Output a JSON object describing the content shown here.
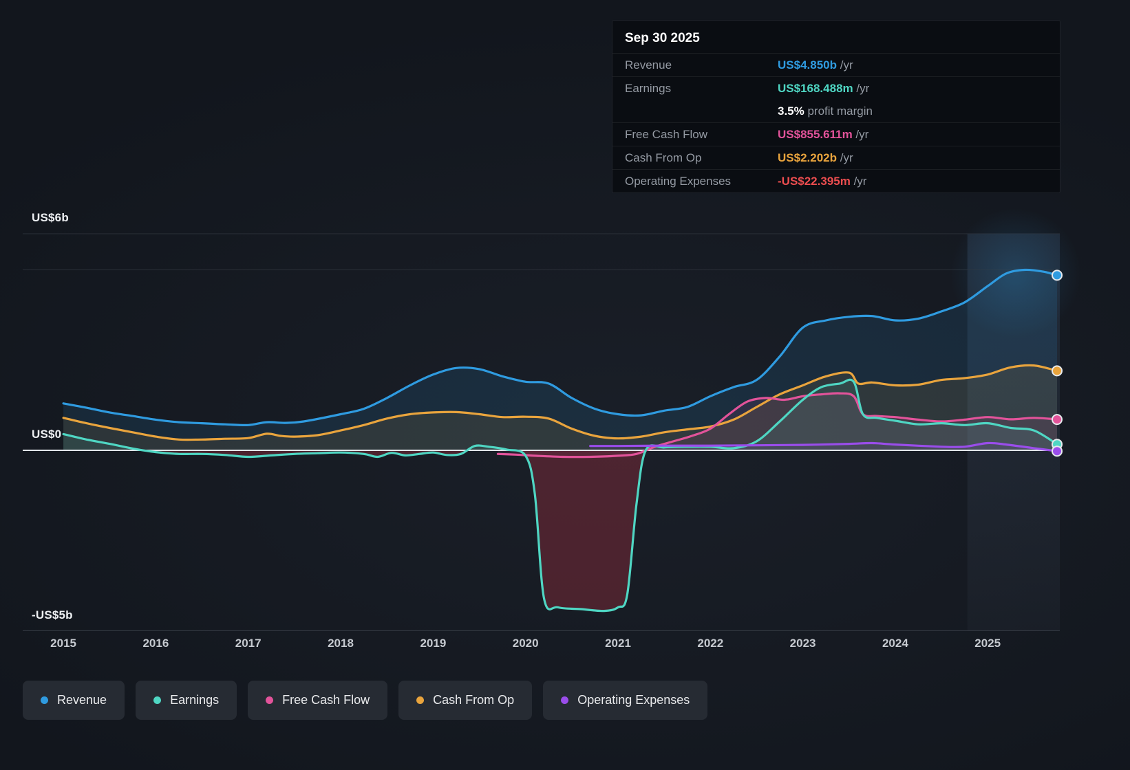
{
  "page": {
    "background": "#12161D",
    "panel_background": "#0A0D12",
    "legend_background": "#262B33",
    "gridline_color": "#2A2F37",
    "zero_line_color": "#E2E6EA",
    "negative_area_color": "#8C2D3C",
    "text_muted": "#949AA3"
  },
  "tooltip": {
    "date": "Sep 30 2025",
    "rows": [
      {
        "id": "revenue",
        "label": "Revenue",
        "value": "US$4.850b",
        "suffix": " /yr",
        "color": "#2F9BE0"
      },
      {
        "id": "earnings",
        "label": "Earnings",
        "value": "US$168.488m",
        "suffix": " /yr",
        "color": "#4FD6C3"
      },
      {
        "id": "profit-margin",
        "label": "",
        "value": "3.5%",
        "suffix": " profit margin",
        "color": "#FFFFFF",
        "no_divider": true
      },
      {
        "id": "free-cash-flow",
        "label": "Free Cash Flow",
        "value": "US$855.611m",
        "suffix": " /yr",
        "color": "#E2539A"
      },
      {
        "id": "cash-from-op",
        "label": "Cash From Op",
        "value": "US$2.202b",
        "suffix": " /yr",
        "color": "#E9A43D"
      },
      {
        "id": "operating-expenses",
        "label": "Operating Expenses",
        "value": "-US$22.395m",
        "suffix": " /yr",
        "color": "#EC4D4F"
      }
    ]
  },
  "legend": [
    {
      "id": "revenue",
      "label": "Revenue",
      "color": "#2F9BE0"
    },
    {
      "id": "earnings",
      "label": "Earnings",
      "color": "#4FD6C3"
    },
    {
      "id": "free-cash-flow",
      "label": "Free Cash Flow",
      "color": "#E2539A"
    },
    {
      "id": "cash-from-op",
      "label": "Cash From Op",
      "color": "#E9A43D"
    },
    {
      "id": "operating-expenses",
      "label": "Operating Expenses",
      "color": "#9A4DEB"
    }
  ],
  "chart_data": {
    "type": "area",
    "title": "Earnings and Revenue History",
    "x_unit": "year",
    "y_unit": "US$ billions",
    "xlim": [
      2014.56,
      2025.78
    ],
    "ylim": [
      -5,
      6
    ],
    "x_ticks": [
      2015,
      2016,
      2017,
      2018,
      2019,
      2020,
      2021,
      2022,
      2023,
      2024,
      2025
    ],
    "gridline_values": [
      6,
      5,
      -5
    ],
    "zero_value": 0,
    "y_axis_labels": [
      {
        "text": "US$6b",
        "value": 6
      },
      {
        "text": "US$0",
        "value": 0
      },
      {
        "text": "-US$5b",
        "value": -5
      }
    ],
    "highlight_band_start": 2024.78,
    "legend_position": "bottom",
    "series": [
      {
        "name": "Revenue",
        "color": "#2F9BE0",
        "fill_opacity": 0.13,
        "points": [
          [
            2015.0,
            1.3
          ],
          [
            2015.25,
            1.18
          ],
          [
            2015.5,
            1.05
          ],
          [
            2015.75,
            0.95
          ],
          [
            2016.0,
            0.85
          ],
          [
            2016.25,
            0.78
          ],
          [
            2016.5,
            0.75
          ],
          [
            2016.75,
            0.72
          ],
          [
            2017.0,
            0.7
          ],
          [
            2017.2,
            0.78
          ],
          [
            2017.4,
            0.76
          ],
          [
            2017.6,
            0.8
          ],
          [
            2018.0,
            1.0
          ],
          [
            2018.25,
            1.15
          ],
          [
            2018.5,
            1.45
          ],
          [
            2018.75,
            1.8
          ],
          [
            2019.0,
            2.1
          ],
          [
            2019.25,
            2.28
          ],
          [
            2019.5,
            2.25
          ],
          [
            2019.75,
            2.05
          ],
          [
            2020.0,
            1.9
          ],
          [
            2020.25,
            1.85
          ],
          [
            2020.5,
            1.45
          ],
          [
            2020.75,
            1.15
          ],
          [
            2021.0,
            1.0
          ],
          [
            2021.25,
            0.97
          ],
          [
            2021.5,
            1.1
          ],
          [
            2021.75,
            1.2
          ],
          [
            2022.0,
            1.5
          ],
          [
            2022.25,
            1.75
          ],
          [
            2022.5,
            1.95
          ],
          [
            2022.75,
            2.6
          ],
          [
            2023.0,
            3.4
          ],
          [
            2023.25,
            3.6
          ],
          [
            2023.5,
            3.7
          ],
          [
            2023.75,
            3.72
          ],
          [
            2024.0,
            3.6
          ],
          [
            2024.25,
            3.65
          ],
          [
            2024.5,
            3.85
          ],
          [
            2024.75,
            4.1
          ],
          [
            2025.0,
            4.55
          ],
          [
            2025.2,
            4.9
          ],
          [
            2025.4,
            5.0
          ],
          [
            2025.6,
            4.95
          ],
          [
            2025.75,
            4.85
          ]
        ]
      },
      {
        "name": "Cash From Op",
        "color": "#E9A43D",
        "fill_opacity": 0.1,
        "points": [
          [
            2015.0,
            0.9
          ],
          [
            2015.25,
            0.75
          ],
          [
            2015.5,
            0.62
          ],
          [
            2015.75,
            0.5
          ],
          [
            2016.0,
            0.38
          ],
          [
            2016.25,
            0.3
          ],
          [
            2016.5,
            0.3
          ],
          [
            2016.75,
            0.32
          ],
          [
            2017.0,
            0.34
          ],
          [
            2017.2,
            0.46
          ],
          [
            2017.35,
            0.4
          ],
          [
            2017.5,
            0.38
          ],
          [
            2017.75,
            0.42
          ],
          [
            2018.0,
            0.55
          ],
          [
            2018.25,
            0.7
          ],
          [
            2018.5,
            0.88
          ],
          [
            2018.75,
            1.0
          ],
          [
            2019.0,
            1.05
          ],
          [
            2019.25,
            1.06
          ],
          [
            2019.5,
            1.0
          ],
          [
            2019.75,
            0.92
          ],
          [
            2020.0,
            0.93
          ],
          [
            2020.25,
            0.88
          ],
          [
            2020.5,
            0.6
          ],
          [
            2020.75,
            0.4
          ],
          [
            2021.0,
            0.33
          ],
          [
            2021.25,
            0.38
          ],
          [
            2021.5,
            0.5
          ],
          [
            2021.75,
            0.58
          ],
          [
            2022.0,
            0.66
          ],
          [
            2022.25,
            0.85
          ],
          [
            2022.5,
            1.2
          ],
          [
            2022.75,
            1.55
          ],
          [
            2023.0,
            1.8
          ],
          [
            2023.25,
            2.05
          ],
          [
            2023.5,
            2.15
          ],
          [
            2023.6,
            1.85
          ],
          [
            2023.75,
            1.88
          ],
          [
            2024.0,
            1.8
          ],
          [
            2024.25,
            1.82
          ],
          [
            2024.5,
            1.95
          ],
          [
            2024.75,
            2.0
          ],
          [
            2025.0,
            2.1
          ],
          [
            2025.25,
            2.3
          ],
          [
            2025.5,
            2.35
          ],
          [
            2025.75,
            2.202
          ]
        ]
      },
      {
        "name": "Free Cash Flow",
        "color": "#E2539A",
        "fill_opacity": 0.1,
        "points": [
          [
            2019.7,
            -0.1
          ],
          [
            2019.9,
            -0.12
          ],
          [
            2020.1,
            -0.15
          ],
          [
            2020.4,
            -0.18
          ],
          [
            2020.7,
            -0.18
          ],
          [
            2021.0,
            -0.15
          ],
          [
            2021.2,
            -0.1
          ],
          [
            2021.4,
            0.1
          ],
          [
            2021.6,
            0.25
          ],
          [
            2021.8,
            0.4
          ],
          [
            2022.0,
            0.6
          ],
          [
            2022.2,
            1.0
          ],
          [
            2022.4,
            1.35
          ],
          [
            2022.6,
            1.45
          ],
          [
            2022.8,
            1.4
          ],
          [
            2023.0,
            1.5
          ],
          [
            2023.2,
            1.55
          ],
          [
            2023.4,
            1.58
          ],
          [
            2023.55,
            1.5
          ],
          [
            2023.65,
            1.0
          ],
          [
            2023.8,
            0.95
          ],
          [
            2024.0,
            0.92
          ],
          [
            2024.25,
            0.85
          ],
          [
            2024.5,
            0.8
          ],
          [
            2024.75,
            0.85
          ],
          [
            2025.0,
            0.92
          ],
          [
            2025.25,
            0.86
          ],
          [
            2025.5,
            0.9
          ],
          [
            2025.75,
            0.856
          ]
        ]
      },
      {
        "name": "Earnings",
        "color": "#4FD6C3",
        "fill_opacity": 0.1,
        "negative_fill": "#8C2D3C",
        "negative_fill_opacity": 0.45,
        "points": [
          [
            2015.0,
            0.45
          ],
          [
            2015.25,
            0.3
          ],
          [
            2015.5,
            0.18
          ],
          [
            2015.75,
            0.05
          ],
          [
            2016.0,
            -0.05
          ],
          [
            2016.25,
            -0.1
          ],
          [
            2016.5,
            -0.1
          ],
          [
            2016.75,
            -0.13
          ],
          [
            2017.0,
            -0.18
          ],
          [
            2017.25,
            -0.14
          ],
          [
            2017.5,
            -0.1
          ],
          [
            2017.75,
            -0.08
          ],
          [
            2018.0,
            -0.06
          ],
          [
            2018.25,
            -0.1
          ],
          [
            2018.4,
            -0.18
          ],
          [
            2018.55,
            -0.07
          ],
          [
            2018.7,
            -0.14
          ],
          [
            2018.85,
            -0.1
          ],
          [
            2019.0,
            -0.06
          ],
          [
            2019.15,
            -0.13
          ],
          [
            2019.3,
            -0.1
          ],
          [
            2019.45,
            0.12
          ],
          [
            2019.6,
            0.1
          ],
          [
            2019.8,
            0.02
          ],
          [
            2020.0,
            -0.15
          ],
          [
            2020.1,
            -1.2
          ],
          [
            2020.2,
            -4.1
          ],
          [
            2020.35,
            -4.35
          ],
          [
            2020.6,
            -4.4
          ],
          [
            2020.85,
            -4.45
          ],
          [
            2021.0,
            -4.35
          ],
          [
            2021.1,
            -4.0
          ],
          [
            2021.2,
            -1.5
          ],
          [
            2021.3,
            0.0
          ],
          [
            2021.5,
            0.08
          ],
          [
            2021.75,
            0.1
          ],
          [
            2022.0,
            0.1
          ],
          [
            2022.25,
            0.06
          ],
          [
            2022.5,
            0.25
          ],
          [
            2022.75,
            0.8
          ],
          [
            2023.0,
            1.4
          ],
          [
            2023.2,
            1.75
          ],
          [
            2023.4,
            1.85
          ],
          [
            2023.55,
            1.9
          ],
          [
            2023.65,
            1.0
          ],
          [
            2023.8,
            0.9
          ],
          [
            2024.0,
            0.82
          ],
          [
            2024.25,
            0.72
          ],
          [
            2024.5,
            0.75
          ],
          [
            2024.75,
            0.7
          ],
          [
            2025.0,
            0.75
          ],
          [
            2025.25,
            0.62
          ],
          [
            2025.5,
            0.55
          ],
          [
            2025.75,
            0.168
          ]
        ]
      },
      {
        "name": "Operating Expenses",
        "color": "#9A4DEB",
        "fill_opacity": 0.08,
        "points": [
          [
            2020.7,
            0.12
          ],
          [
            2021.0,
            0.12
          ],
          [
            2021.5,
            0.13
          ],
          [
            2022.0,
            0.13
          ],
          [
            2022.5,
            0.14
          ],
          [
            2023.0,
            0.15
          ],
          [
            2023.5,
            0.18
          ],
          [
            2023.75,
            0.2
          ],
          [
            2024.0,
            0.16
          ],
          [
            2024.5,
            0.1
          ],
          [
            2024.75,
            0.1
          ],
          [
            2025.0,
            0.2
          ],
          [
            2025.2,
            0.16
          ],
          [
            2025.5,
            0.06
          ],
          [
            2025.75,
            -0.022
          ]
        ]
      }
    ]
  }
}
